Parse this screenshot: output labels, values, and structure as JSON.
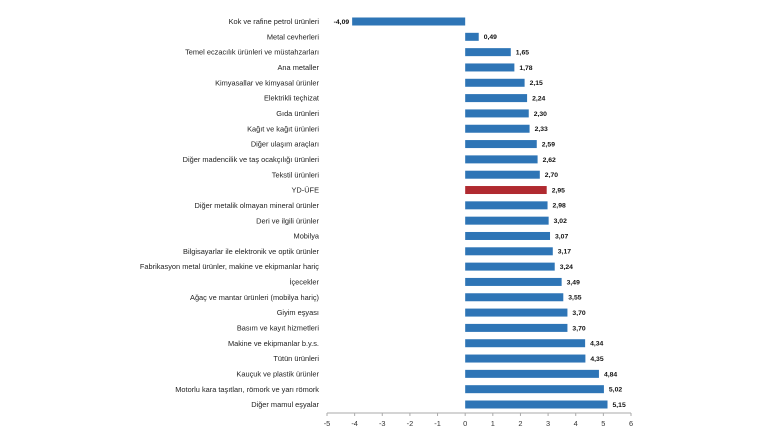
{
  "chart_data": {
    "type": "bar",
    "orientation": "horizontal",
    "title": "",
    "xlabel": "",
    "ylabel": "",
    "xlim": [
      -5,
      6
    ],
    "xticks": [
      -5,
      -4,
      -3,
      -2,
      -1,
      0,
      1,
      2,
      3,
      4,
      5,
      6
    ],
    "grid": false,
    "legend": "none",
    "colors": {
      "bar": "#2e75b6",
      "highlight": "#b02a30",
      "axis": "#aaaaaa"
    },
    "highlight_category": "YD-ÜFE",
    "categories": [
      "Kok ve rafine petrol ürünleri",
      "Metal cevherleri",
      "Temel eczacılık ürünleri ve müstahzarları",
      "Ana metaller",
      "Kimyasallar ve kimyasal ürünler",
      "Elektrikli teçhizat",
      "Gıda ürünleri",
      "Kağıt ve kağıt ürünleri",
      "Diğer ulaşım araçları",
      "Diğer madencilik ve taş ocakçılığı ürünleri",
      "Tekstil ürünleri",
      "YD-ÜFE",
      "Diğer metalik olmayan mineral ürünler",
      "Deri ve ilgili ürünler",
      "Mobilya",
      "Bilgisayarlar ile elektronik ve optik ürünler",
      "Fabrikasyon metal ürünler, makine ve ekipmanlar hariç",
      "İçecekler",
      "Ağaç ve mantar ürünleri (mobilya hariç)",
      "Giyim eşyası",
      "Basım ve kayıt hizmetleri",
      "Makine ve ekipmanlar b.y.s.",
      "Tütün ürünleri",
      "Kauçuk ve plastik ürünler",
      "Motorlu kara taşıtları, römork ve yarı römork",
      "Diğer mamul eşyalar"
    ],
    "values": [
      -4.09,
      0.49,
      1.65,
      1.78,
      2.15,
      2.24,
      2.3,
      2.33,
      2.59,
      2.62,
      2.7,
      2.95,
      2.98,
      3.02,
      3.07,
      3.17,
      3.24,
      3.49,
      3.55,
      3.7,
      3.7,
      4.34,
      4.35,
      4.84,
      5.02,
      5.15
    ],
    "value_labels": [
      "-4,09",
      "0,49",
      "1,65",
      "1,78",
      "2,15",
      "2,24",
      "2,30",
      "2,33",
      "2,59",
      "2,62",
      "2,70",
      "2,95",
      "2,98",
      "3,02",
      "3,07",
      "3,17",
      "3,24",
      "3,49",
      "3,55",
      "3,70",
      "3,70",
      "4,34",
      "4,35",
      "4,84",
      "5,02",
      "5,15"
    ]
  }
}
